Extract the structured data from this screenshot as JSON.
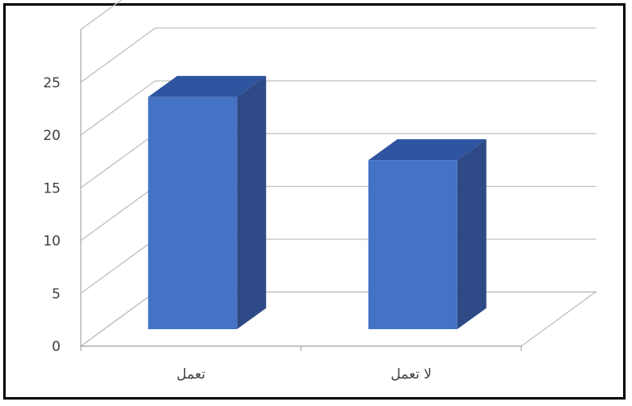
{
  "chart_data": {
    "type": "bar",
    "style": "3d-column",
    "categories": [
      "تعمل",
      "لا تعمل"
    ],
    "values": [
      23,
      17
    ],
    "title": "",
    "xlabel": "",
    "ylabel": "",
    "ylim": [
      0,
      30
    ],
    "yticks": [
      0,
      5,
      10,
      15,
      20,
      25
    ],
    "grid": true,
    "legend": "none",
    "colors": {
      "bar_front": "#4472c4",
      "bar_side": "#2e4a86",
      "bar_top": "#2f55a0",
      "grid": "#bfbfbf",
      "axis": "#a6a6a6",
      "text": "#404040"
    }
  }
}
